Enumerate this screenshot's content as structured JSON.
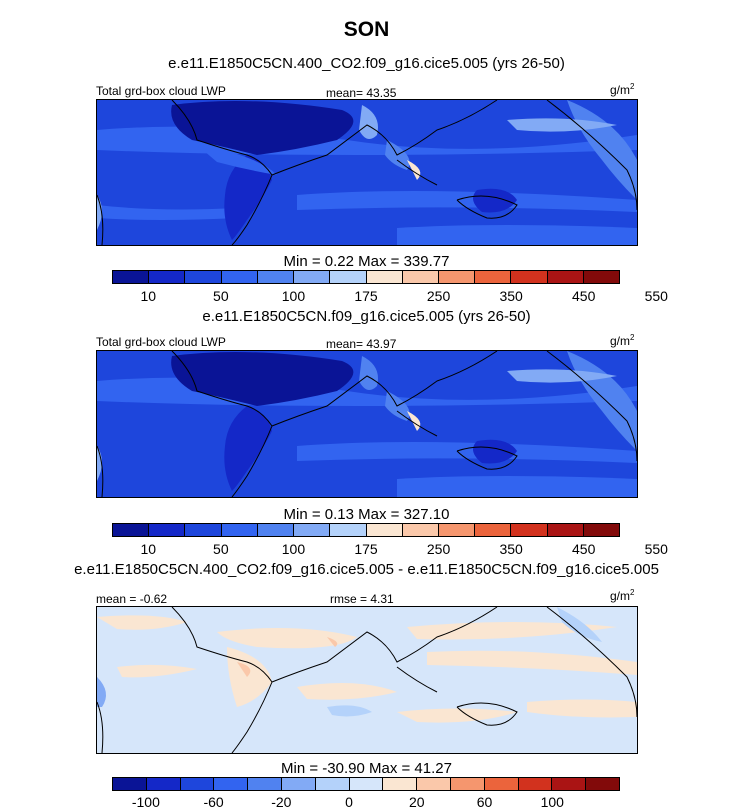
{
  "title": "SON",
  "panels": [
    {
      "title": "e.e11.E1850C5CN.400_CO2.f09_g16.cice5.005 (yrs 26-50)",
      "left_label": "Total grd-box cloud LWP",
      "center_label": "mean=  43.35",
      "units": "g/m",
      "units_sup": "2",
      "minmax": "Min =   0.22 Max = 339.77",
      "colors": [
        "#0a1496",
        "#1428c8",
        "#1e46dc",
        "#3264f0",
        "#5082f0",
        "#82aaf5",
        "#b4d2fa",
        "#fae6d2",
        "#fac8aa",
        "#f5966e",
        "#eb643c",
        "#d2321e",
        "#aa1414",
        "#820a0a"
      ],
      "ticks": [
        "10",
        "50",
        "100",
        "175",
        "250",
        "350",
        "450",
        "550"
      ]
    },
    {
      "title": "e.e11.E1850C5CN.f09_g16.cice5.005 (yrs 26-50)",
      "left_label": "Total grd-box cloud LWP",
      "center_label": "mean=  43.97",
      "units": "g/m",
      "units_sup": "2",
      "minmax": "Min =   0.13 Max = 327.10",
      "colors": [
        "#0a1496",
        "#1428c8",
        "#1e46dc",
        "#3264f0",
        "#5082f0",
        "#82aaf5",
        "#b4d2fa",
        "#fae6d2",
        "#fac8aa",
        "#f5966e",
        "#eb643c",
        "#d2321e",
        "#aa1414",
        "#820a0a"
      ],
      "ticks": [
        "10",
        "50",
        "100",
        "175",
        "250",
        "350",
        "450",
        "550"
      ]
    },
    {
      "title": "e.e11.E1850C5CN.400_CO2.f09_g16.cice5.005 - e.e11.E1850C5CN.f09_g16.cice5.005",
      "left_label": "mean =  -0.62",
      "center_label": "rmse =   4.31",
      "units": "g/m",
      "units_sup": "2",
      "minmax": "Min = -30.90 Max =  41.27",
      "colors": [
        "#0a1496",
        "#1428c8",
        "#1e46dc",
        "#3264f0",
        "#5082f0",
        "#82aaf5",
        "#b4d2fa",
        "#d6e6fa",
        "#fae6d2",
        "#fac8aa",
        "#f5966e",
        "#eb643c",
        "#d2321e",
        "#aa1414",
        "#820a0a"
      ],
      "ticks": [
        "-100",
        "-60",
        "-20",
        "0",
        "20",
        "60",
        "100"
      ]
    }
  ]
}
